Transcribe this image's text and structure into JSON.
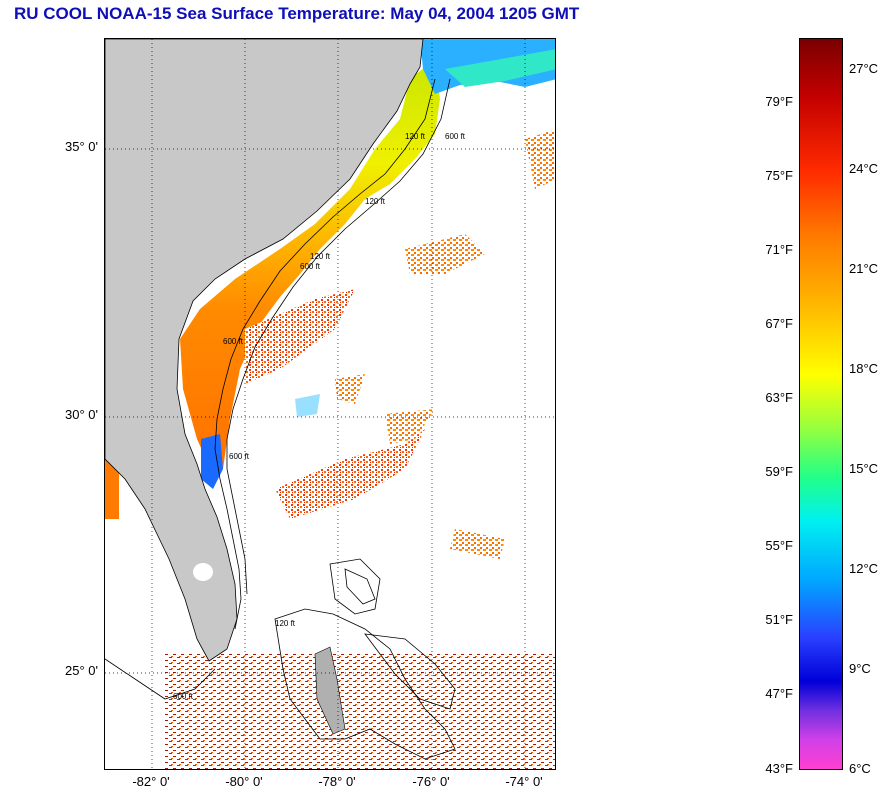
{
  "title": "RU COOL  NOAA-15  Sea Surface Temperature:  May 04, 2004 1205 GMT",
  "map": {
    "lat_labels": [
      {
        "text": "35° 0'",
        "lat": 35
      },
      {
        "text": "30° 0'",
        "lat": 30
      },
      {
        "text": "25° 0'",
        "lat": 25
      }
    ],
    "lon_labels": [
      {
        "text": "-82° 0'",
        "lon": -82
      },
      {
        "text": "-80° 0'",
        "lon": -80
      },
      {
        "text": "-78° 0'",
        "lon": -78
      },
      {
        "text": "-76° 0'",
        "lon": -76
      },
      {
        "text": "-74° 0'",
        "lon": -74
      }
    ],
    "contour_labels": [
      "120 ft",
      "600 ft",
      "120 ft",
      "600 ft",
      "120 ft",
      "600 ft",
      "600 ft",
      "120 ft",
      "600 ft"
    ],
    "land_color": "#c8c8c8"
  },
  "colorbar": {
    "fahrenheit": [
      {
        "text": "79°F",
        "value": 79
      },
      {
        "text": "75°F",
        "value": 75
      },
      {
        "text": "71°F",
        "value": 71
      },
      {
        "text": "67°F",
        "value": 67
      },
      {
        "text": "63°F",
        "value": 63
      },
      {
        "text": "59°F",
        "value": 59
      },
      {
        "text": "55°F",
        "value": 55
      },
      {
        "text": "51°F",
        "value": 51
      },
      {
        "text": "47°F",
        "value": 47
      },
      {
        "text": "43°F",
        "value": 43
      }
    ],
    "celsius": [
      {
        "text": "27°C",
        "value": 27
      },
      {
        "text": "24°C",
        "value": 24
      },
      {
        "text": "21°C",
        "value": 21
      },
      {
        "text": "18°C",
        "value": 18
      },
      {
        "text": "15°C",
        "value": 15
      },
      {
        "text": "12°C",
        "value": 12
      },
      {
        "text": "9°C",
        "value": 9
      },
      {
        "text": "6°C",
        "value": 6
      }
    ]
  }
}
